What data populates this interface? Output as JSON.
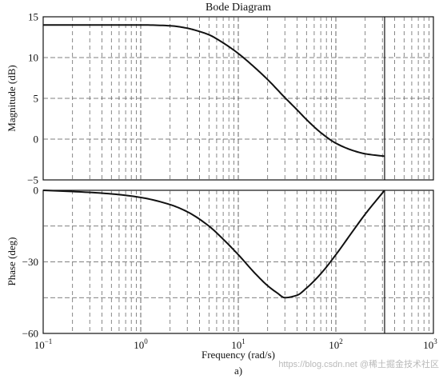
{
  "chart_data": [
    {
      "type": "line",
      "title": "Bode Diagram",
      "ylabel": "Magnitude (dB)",
      "xscale": "log",
      "xlim": [
        0.1,
        1000
      ],
      "ylim": [
        -5,
        15
      ],
      "yticks": [
        -5,
        0,
        5,
        10,
        15
      ],
      "grid": true,
      "series": [
        {
          "x": [
            0.1,
            0.3,
            0.5,
            1,
            2,
            3,
            4,
            5,
            7,
            10,
            15,
            20,
            30,
            40,
            50,
            70,
            100,
            150,
            200,
            316
          ],
          "y": [
            14.0,
            14.0,
            14.0,
            14.0,
            13.9,
            13.6,
            13.2,
            12.8,
            11.8,
            10.5,
            8.7,
            7.3,
            5.1,
            3.6,
            2.4,
            0.8,
            -0.5,
            -1.4,
            -1.8,
            -2.1
          ]
        }
      ]
    },
    {
      "type": "line",
      "xlabel": "Frequency (rad/s)",
      "ylabel": "Phase (deg)",
      "xscale": "log",
      "xlim": [
        0.1,
        1000
      ],
      "ylim": [
        -60,
        0
      ],
      "yticks": [
        -60,
        -30,
        0
      ],
      "grid": true,
      "series": [
        {
          "x": [
            0.1,
            0.2,
            0.5,
            1,
            2,
            3,
            5,
            7,
            10,
            15,
            20,
            25,
            30,
            40,
            50,
            70,
            100,
            150,
            200,
            316
          ],
          "y": [
            0,
            -0.5,
            -1.5,
            -3,
            -6,
            -9,
            -15,
            -20.5,
            -27,
            -35,
            -40,
            -43,
            -45,
            -44,
            -41,
            -35,
            -27,
            -17,
            -10,
            0
          ]
        }
      ]
    }
  ],
  "xticks": [
    {
      "base": "10",
      "exp": "−1"
    },
    {
      "base": "10",
      "exp": "0"
    },
    {
      "base": "10",
      "exp": "1"
    },
    {
      "base": "10",
      "exp": "2"
    },
    {
      "base": "10",
      "exp": "3"
    }
  ],
  "caption": "a)",
  "watermark": "https://blog.csdn.net @稀土掘金技术社区"
}
